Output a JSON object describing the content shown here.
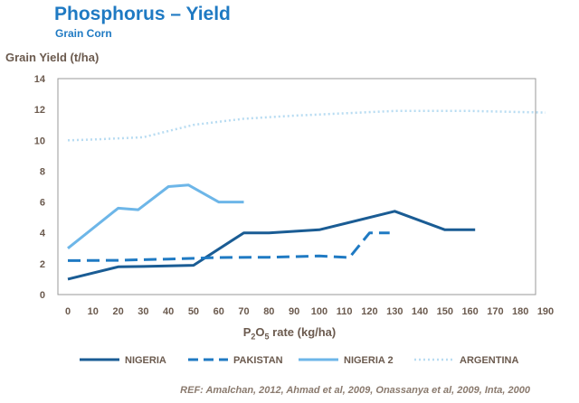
{
  "header": {
    "title": "Phosphorus – Yield",
    "subtitle": "Grain Corn"
  },
  "footer": {
    "reference": "REF: Amalchan, 2012, Ahmad et al, 2009, Onassanya et al, 2009, Inta, 2000"
  },
  "chart_data": {
    "type": "line",
    "ylabel": "Grain Yield (t/ha)",
    "xlabel_prefix": "P",
    "xlabel_sub": "2",
    "xlabel_mid": "O",
    "xlabel_sub2": "5",
    "xlabel_suffix": " rate (kg/ha)",
    "xlim": [
      0,
      190
    ],
    "ylim": [
      0,
      14
    ],
    "x_ticks": [
      "0",
      "10",
      "20",
      "30",
      "40",
      "50",
      "60",
      "70",
      "80",
      "90",
      "100",
      "110",
      "120",
      "130",
      "140",
      "150",
      "160",
      "170",
      "180",
      "190"
    ],
    "y_ticks": [
      "0",
      "2",
      "4",
      "6",
      "8",
      "10",
      "12",
      "14"
    ],
    "grid": false,
    "legend_position": "bottom",
    "series": [
      {
        "name": "NIGERIA",
        "color": "#1a5c94",
        "style": "solid",
        "points": [
          [
            0,
            1.0
          ],
          [
            20,
            1.8
          ],
          [
            30,
            1.82
          ],
          [
            50,
            1.9
          ],
          [
            70,
            4.0
          ],
          [
            80,
            4.0
          ],
          [
            100,
            4.2
          ],
          [
            130,
            5.4
          ],
          [
            150,
            4.2
          ],
          [
            162,
            4.2
          ]
        ]
      },
      {
        "name": "PAKISTAN",
        "color": "#1f7ac3",
        "style": "dashed",
        "points": [
          [
            0,
            2.2
          ],
          [
            20,
            2.22
          ],
          [
            40,
            2.3
          ],
          [
            60,
            2.4
          ],
          [
            80,
            2.42
          ],
          [
            100,
            2.5
          ],
          [
            112,
            2.4
          ],
          [
            120,
            4.0
          ],
          [
            128,
            4.0
          ]
        ]
      },
      {
        "name": "NIGERIA 2",
        "color": "#6db6e8",
        "style": "solid",
        "points": [
          [
            0,
            3.0
          ],
          [
            20,
            5.6
          ],
          [
            28,
            5.5
          ],
          [
            40,
            7.0
          ],
          [
            48,
            7.1
          ],
          [
            60,
            6.0
          ],
          [
            70,
            6.0
          ]
        ]
      },
      {
        "name": "ARGENTINA",
        "color": "#b8dcf2",
        "style": "dotted",
        "points": [
          [
            0,
            10.0
          ],
          [
            10,
            10.05
          ],
          [
            30,
            10.2
          ],
          [
            40,
            10.6
          ],
          [
            50,
            11.0
          ],
          [
            70,
            11.4
          ],
          [
            90,
            11.6
          ],
          [
            110,
            11.75
          ],
          [
            130,
            11.9
          ],
          [
            160,
            11.9
          ],
          [
            190,
            11.8
          ]
        ]
      }
    ]
  }
}
